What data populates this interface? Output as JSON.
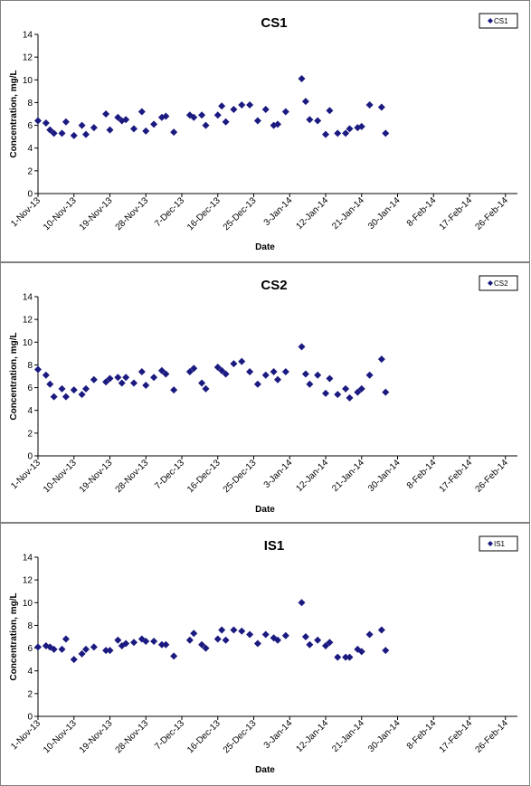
{
  "colors": {
    "marker": "#1a1a80",
    "axis": "#000000",
    "frame": "#808080"
  },
  "chart_data": [
    {
      "type": "scatter",
      "title": "CS1",
      "xlabel": "Date",
      "ylabel": "Concentration, mg/L",
      "legend": {
        "label": "CS1",
        "position": "top-right"
      },
      "ylim": [
        0,
        14
      ],
      "yticks": [
        "0",
        "2",
        "4",
        "6",
        "8",
        "10",
        "12",
        "14"
      ],
      "xlim": [
        "2013-11-01",
        "2014-03-01"
      ],
      "xticks": [
        "1-Nov-13",
        "10-Nov-13",
        "19-Nov-13",
        "28-Nov-13",
        "7-Dec-13",
        "16-Dec-13",
        "25-Dec-13",
        "3-Jan-14",
        "12-Jan-14",
        "21-Jan-14",
        "30-Jan-14",
        "8-Feb-14",
        "17-Feb-14",
        "26-Feb-14"
      ],
      "grid": false,
      "points": [
        [
          "2013-11-01",
          6.4
        ],
        [
          "2013-11-03",
          6.2
        ],
        [
          "2013-11-04",
          5.6
        ],
        [
          "2013-11-05",
          5.3
        ],
        [
          "2013-11-07",
          5.3
        ],
        [
          "2013-11-08",
          6.3
        ],
        [
          "2013-11-10",
          5.1
        ],
        [
          "2013-11-12",
          6.0
        ],
        [
          "2013-11-13",
          5.2
        ],
        [
          "2013-11-15",
          5.8
        ],
        [
          "2013-11-18",
          7.0
        ],
        [
          "2013-11-19",
          5.6
        ],
        [
          "2013-11-21",
          6.7
        ],
        [
          "2013-11-22",
          6.4
        ],
        [
          "2013-11-23",
          6.5
        ],
        [
          "2013-11-25",
          5.7
        ],
        [
          "2013-11-27",
          7.2
        ],
        [
          "2013-11-28",
          5.5
        ],
        [
          "2013-11-30",
          6.1
        ],
        [
          "2013-12-02",
          6.7
        ],
        [
          "2013-12-03",
          6.8
        ],
        [
          "2013-12-05",
          5.4
        ],
        [
          "2013-12-09",
          6.9
        ],
        [
          "2013-12-10",
          6.7
        ],
        [
          "2013-12-12",
          6.9
        ],
        [
          "2013-12-13",
          6.0
        ],
        [
          "2013-12-16",
          6.9
        ],
        [
          "2013-12-17",
          7.7
        ],
        [
          "2013-12-18",
          6.3
        ],
        [
          "2013-12-20",
          7.4
        ],
        [
          "2013-12-22",
          7.8
        ],
        [
          "2013-12-24",
          7.8
        ],
        [
          "2013-12-26",
          6.4
        ],
        [
          "2013-12-28",
          7.4
        ],
        [
          "2013-12-30",
          6.0
        ],
        [
          "2013-12-31",
          6.1
        ],
        [
          "2014-01-02",
          7.2
        ],
        [
          "2014-01-06",
          10.1
        ],
        [
          "2014-01-07",
          8.1
        ],
        [
          "2014-01-08",
          6.5
        ],
        [
          "2014-01-10",
          6.4
        ],
        [
          "2014-01-12",
          5.2
        ],
        [
          "2014-01-13",
          7.3
        ],
        [
          "2014-01-15",
          5.3
        ],
        [
          "2014-01-17",
          5.3
        ],
        [
          "2014-01-18",
          5.7
        ],
        [
          "2014-01-20",
          5.8
        ],
        [
          "2014-01-21",
          5.9
        ],
        [
          "2014-01-23",
          7.8
        ],
        [
          "2014-01-26",
          7.6
        ],
        [
          "2014-01-27",
          5.3
        ]
      ]
    },
    {
      "type": "scatter",
      "title": "CS2",
      "xlabel": "Date",
      "ylabel": "Concentration, mg/L",
      "legend": {
        "label": "CS2",
        "position": "top-right"
      },
      "ylim": [
        0,
        14
      ],
      "yticks": [
        "0",
        "2",
        "4",
        "6",
        "8",
        "10",
        "12",
        "14"
      ],
      "xlim": [
        "2013-11-01",
        "2014-03-01"
      ],
      "xticks": [
        "1-Nov-13",
        "10-Nov-13",
        "19-Nov-13",
        "28-Nov-13",
        "7-Dec-13",
        "16-Dec-13",
        "25-Dec-13",
        "3-Jan-14",
        "12-Jan-14",
        "21-Jan-14",
        "30-Jan-14",
        "8-Feb-14",
        "17-Feb-14",
        "26-Feb-14"
      ],
      "grid": false,
      "points": [
        [
          "2013-11-01",
          7.6
        ],
        [
          "2013-11-03",
          7.1
        ],
        [
          "2013-11-04",
          6.3
        ],
        [
          "2013-11-05",
          5.2
        ],
        [
          "2013-11-07",
          5.9
        ],
        [
          "2013-11-08",
          5.2
        ],
        [
          "2013-11-10",
          5.8
        ],
        [
          "2013-11-12",
          5.4
        ],
        [
          "2013-11-13",
          5.9
        ],
        [
          "2013-11-15",
          6.7
        ],
        [
          "2013-11-18",
          6.5
        ],
        [
          "2013-11-19",
          6.8
        ],
        [
          "2013-11-21",
          6.9
        ],
        [
          "2013-11-22",
          6.4
        ],
        [
          "2013-11-23",
          6.9
        ],
        [
          "2013-11-25",
          6.4
        ],
        [
          "2013-11-27",
          7.4
        ],
        [
          "2013-11-28",
          6.2
        ],
        [
          "2013-11-30",
          6.9
        ],
        [
          "2013-12-02",
          7.5
        ],
        [
          "2013-12-03",
          7.2
        ],
        [
          "2013-12-05",
          5.8
        ],
        [
          "2013-12-09",
          7.4
        ],
        [
          "2013-12-10",
          7.7
        ],
        [
          "2013-12-12",
          6.4
        ],
        [
          "2013-12-13",
          5.9
        ],
        [
          "2013-12-16",
          7.8
        ],
        [
          "2013-12-17",
          7.5
        ],
        [
          "2013-12-18",
          7.2
        ],
        [
          "2013-12-20",
          8.1
        ],
        [
          "2013-12-22",
          8.3
        ],
        [
          "2013-12-24",
          7.4
        ],
        [
          "2013-12-26",
          6.3
        ],
        [
          "2013-12-28",
          7.1
        ],
        [
          "2013-12-30",
          7.4
        ],
        [
          "2013-12-31",
          6.7
        ],
        [
          "2014-01-02",
          7.4
        ],
        [
          "2014-01-06",
          9.6
        ],
        [
          "2014-01-07",
          7.2
        ],
        [
          "2014-01-08",
          6.3
        ],
        [
          "2014-01-10",
          7.1
        ],
        [
          "2014-01-12",
          5.5
        ],
        [
          "2014-01-13",
          6.8
        ],
        [
          "2014-01-15",
          5.4
        ],
        [
          "2014-01-17",
          5.9
        ],
        [
          "2014-01-18",
          5.1
        ],
        [
          "2014-01-20",
          5.6
        ],
        [
          "2014-01-21",
          5.9
        ],
        [
          "2014-01-23",
          7.1
        ],
        [
          "2014-01-26",
          8.5
        ],
        [
          "2014-01-27",
          5.6
        ]
      ]
    },
    {
      "type": "scatter",
      "title": "IS1",
      "xlabel": "Date",
      "ylabel": "Concentration, mg/L",
      "legend": {
        "label": "IS1",
        "position": "top-right"
      },
      "ylim": [
        0,
        14
      ],
      "yticks": [
        "0",
        "2",
        "4",
        "6",
        "8",
        "10",
        "12",
        "14"
      ],
      "xlim": [
        "2013-11-01",
        "2014-03-01"
      ],
      "xticks": [
        "1-Nov-13",
        "10-Nov-13",
        "19-Nov-13",
        "28-Nov-13",
        "7-Dec-13",
        "16-Dec-13",
        "25-Dec-13",
        "3-Jan-14",
        "12-Jan-14",
        "21-Jan-14",
        "30-Jan-14",
        "8-Feb-14",
        "17-Feb-14",
        "26-Feb-14"
      ],
      "grid": false,
      "points": [
        [
          "2013-11-01",
          6.1
        ],
        [
          "2013-11-03",
          6.2
        ],
        [
          "2013-11-04",
          6.1
        ],
        [
          "2013-11-05",
          5.9
        ],
        [
          "2013-11-07",
          5.9
        ],
        [
          "2013-11-08",
          6.8
        ],
        [
          "2013-11-10",
          5.0
        ],
        [
          "2013-11-12",
          5.5
        ],
        [
          "2013-11-13",
          5.9
        ],
        [
          "2013-11-15",
          6.1
        ],
        [
          "2013-11-18",
          5.8
        ],
        [
          "2013-11-19",
          5.8
        ],
        [
          "2013-11-21",
          6.7
        ],
        [
          "2013-11-22",
          6.2
        ],
        [
          "2013-11-23",
          6.4
        ],
        [
          "2013-11-25",
          6.5
        ],
        [
          "2013-11-27",
          6.8
        ],
        [
          "2013-11-28",
          6.6
        ],
        [
          "2013-11-30",
          6.6
        ],
        [
          "2013-12-02",
          6.3
        ],
        [
          "2013-12-03",
          6.3
        ],
        [
          "2013-12-05",
          5.3
        ],
        [
          "2013-12-09",
          6.7
        ],
        [
          "2013-12-10",
          7.3
        ],
        [
          "2013-12-12",
          6.3
        ],
        [
          "2013-12-13",
          6.0
        ],
        [
          "2013-12-16",
          6.8
        ],
        [
          "2013-12-17",
          7.6
        ],
        [
          "2013-12-18",
          6.7
        ],
        [
          "2013-12-20",
          7.6
        ],
        [
          "2013-12-22",
          7.5
        ],
        [
          "2013-12-24",
          7.2
        ],
        [
          "2013-12-26",
          6.4
        ],
        [
          "2013-12-28",
          7.2
        ],
        [
          "2013-12-30",
          6.9
        ],
        [
          "2013-12-31",
          6.7
        ],
        [
          "2014-01-02",
          7.1
        ],
        [
          "2014-01-06",
          10.0
        ],
        [
          "2014-01-07",
          7.0
        ],
        [
          "2014-01-08",
          6.3
        ],
        [
          "2014-01-10",
          6.7
        ],
        [
          "2014-01-12",
          6.2
        ],
        [
          "2014-01-13",
          6.5
        ],
        [
          "2014-01-15",
          5.2
        ],
        [
          "2014-01-17",
          5.2
        ],
        [
          "2014-01-18",
          5.2
        ],
        [
          "2014-01-20",
          5.9
        ],
        [
          "2014-01-21",
          5.7
        ],
        [
          "2014-01-23",
          7.2
        ],
        [
          "2014-01-26",
          7.6
        ],
        [
          "2014-01-27",
          5.8
        ]
      ]
    }
  ]
}
